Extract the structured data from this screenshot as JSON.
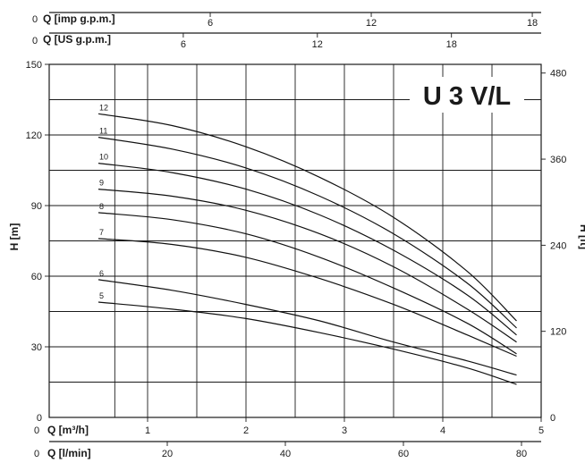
{
  "chart_data": {
    "type": "line",
    "title": "U 3 V/L",
    "ylabel_left": "H [m]",
    "ylabel_right": "H [ft]",
    "axes": {
      "imp_gpm": {
        "label": "Q [imp g.p.m.]",
        "zero": "0",
        "ticks": [
          "6",
          "12",
          "18"
        ]
      },
      "us_gpm": {
        "label": "Q [US g.p.m.]",
        "zero": "0",
        "ticks": [
          "6",
          "12",
          "18"
        ]
      },
      "m3h": {
        "label": "Q [m³/h]",
        "zero": "0",
        "ticks": [
          "1",
          "2",
          "3",
          "4",
          "5"
        ]
      },
      "lmin": {
        "label": "Q [l/min]",
        "zero": "0",
        "ticks": [
          "20",
          "40",
          "60",
          "80"
        ]
      },
      "h_m": {
        "zero": "0",
        "ticks": [
          "30",
          "60",
          "90",
          "120",
          "150"
        ]
      },
      "h_ft": {
        "zero": "0",
        "ticks": [
          "120",
          "240",
          "360",
          "480"
        ]
      }
    },
    "xlim": [
      0,
      5
    ],
    "ylim": [
      0,
      150
    ],
    "x_unit": "m³/h",
    "series": [
      {
        "name": "5",
        "x": [
          0.5,
          1.25,
          2.0,
          2.75,
          3.5,
          4.25,
          4.75
        ],
        "y": [
          49,
          46,
          42,
          36,
          29,
          21,
          14
        ]
      },
      {
        "name": "6",
        "x": [
          0.5,
          1.25,
          2.0,
          2.75,
          3.5,
          4.25,
          4.75
        ],
        "y": [
          58.5,
          54,
          48,
          41,
          32,
          24,
          18
        ]
      },
      {
        "name": "7",
        "x": [
          0.5,
          1.25,
          2.0,
          2.75,
          3.5,
          4.25,
          4.75
        ],
        "y": [
          76,
          73.5,
          68,
          59,
          48,
          35,
          26
        ]
      },
      {
        "name": "8",
        "x": [
          0.5,
          1.25,
          2.0,
          2.75,
          3.5,
          4.25,
          4.75
        ],
        "y": [
          87,
          84,
          78,
          68,
          55,
          40,
          27
        ]
      },
      {
        "name": "9",
        "x": [
          0.5,
          1.25,
          2.0,
          2.75,
          3.5,
          4.25,
          4.75
        ],
        "y": [
          97,
          94,
          88,
          78,
          64,
          46,
          32
        ]
      },
      {
        "name": "10",
        "x": [
          0.5,
          1.25,
          2.0,
          2.75,
          3.5,
          4.25,
          4.75
        ],
        "y": [
          108,
          104,
          97,
          86,
          71,
          52,
          35
        ]
      },
      {
        "name": "11",
        "x": [
          0.5,
          1.25,
          2.0,
          2.75,
          3.5,
          4.25,
          4.75
        ],
        "y": [
          119,
          114,
          106,
          94,
          78,
          57,
          38
        ]
      },
      {
        "name": "12",
        "x": [
          0.5,
          1.25,
          2.0,
          2.75,
          3.5,
          4.25,
          4.75
        ],
        "y": [
          129,
          124,
          115,
          102,
          85,
          62,
          41
        ]
      }
    ]
  }
}
